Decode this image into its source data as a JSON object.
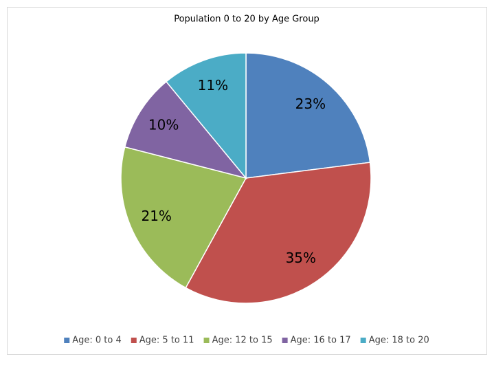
{
  "chart_data": {
    "type": "pie",
    "title": "Population 0 to 20 by Age Group",
    "categories": [
      "Age: 0 to 4",
      "Age: 5 to 11",
      "Age: 12 to 15",
      "Age: 16 to 17",
      "Age: 18 to 20"
    ],
    "values": [
      23,
      35,
      21,
      10,
      11
    ],
    "value_labels": [
      "23%",
      "35%",
      "21%",
      "10%",
      "11%"
    ],
    "colors": [
      "#4f81bd",
      "#c0504d",
      "#9bbb59",
      "#8064a2",
      "#4bacc6"
    ],
    "legend": "bottom"
  }
}
